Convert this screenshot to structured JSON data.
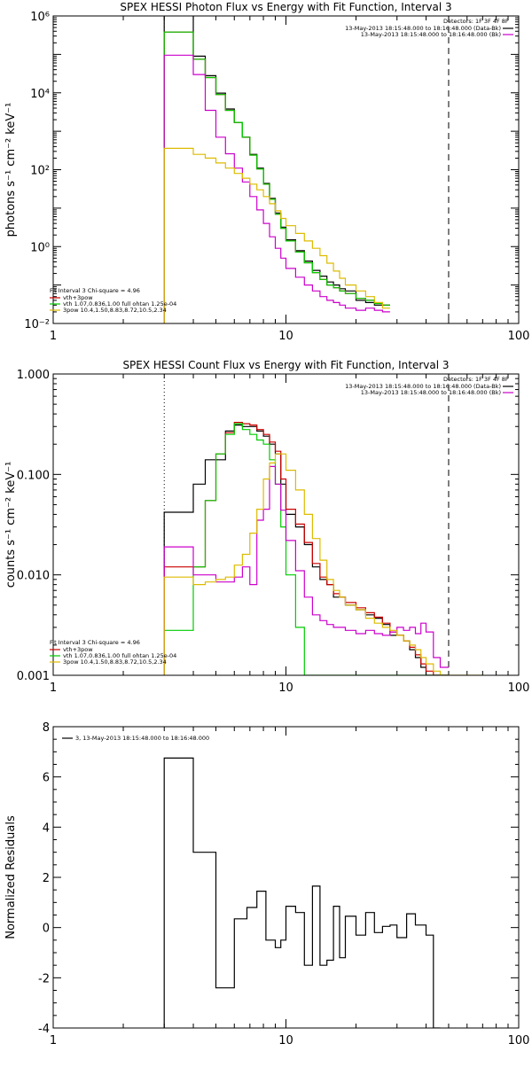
{
  "chart_data": [
    {
      "type": "line",
      "title": "SPEX HESSI Photon Flux vs Energy with Fit Function, Interval 3",
      "ylabel": "photons s⁻¹ cm⁻² keV⁻¹",
      "xscale": "log",
      "yscale": "log",
      "xlim": [
        1,
        100
      ],
      "ylim": [
        0.01,
        1000000
      ],
      "x_ticks": [
        {
          "v": 1,
          "label": "1"
        },
        {
          "v": 10,
          "label": "10"
        },
        {
          "v": 100,
          "label": "100"
        }
      ],
      "y_ticks": [
        {
          "v": 0.01,
          "label": "10⁻²"
        },
        {
          "v": 1,
          "label": "10⁰"
        },
        {
          "v": 100,
          "label": "10²"
        },
        {
          "v": 10000,
          "label": "10⁴"
        },
        {
          "v": 1000000,
          "label": "10⁶"
        }
      ],
      "vlines": [
        {
          "x": 3,
          "style": "dotted",
          "color": "#ff8c00"
        },
        {
          "x": 50,
          "style": "dashed",
          "color": "#000000"
        }
      ],
      "edges": [
        3,
        3.5,
        4,
        4.5,
        5,
        5.5,
        6,
        6.5,
        7,
        7.5,
        8,
        8.5,
        9,
        9.5,
        10,
        11,
        12,
        13,
        14,
        15,
        16,
        17,
        18,
        20,
        22,
        24,
        26,
        28,
        30,
        32,
        34,
        36,
        38,
        40,
        43,
        46,
        50,
        54,
        57
      ],
      "series": [
        {
          "name": "",
          "color": "#000000",
          "values": [
            1100000,
            1100000,
            90000,
            28000,
            9800,
            3800,
            1700,
            700,
            250,
            110,
            44,
            18,
            7.5,
            3.2,
            1.5,
            0.78,
            0.42,
            0.24,
            0.17,
            0.12,
            0.1,
            0.08,
            0.07,
            0.04,
            0.035,
            0.03,
            0.03
          ]
        },
        {
          "name": "",
          "color": "#cc0000",
          "values": [
            380000,
            380000,
            75000,
            25000,
            9000,
            3500,
            1700,
            700,
            240,
            105,
            42,
            17,
            7,
            3,
            1.4,
            0.72,
            0.38,
            0.21,
            0.14,
            0.1,
            0.085,
            0.07,
            0.06,
            0.045,
            0.04,
            0.033,
            0.03
          ]
        },
        {
          "name": "",
          "color": "#00cc00",
          "values": [
            380000,
            380000,
            75000,
            25000,
            9000,
            3500,
            1700,
            700,
            240,
            105,
            42,
            17,
            7,
            3,
            1.4,
            0.72,
            0.38,
            0.21,
            0.14,
            0.1,
            0.085,
            0.07,
            0.06,
            0.045,
            0.04,
            0.033,
            0.03
          ]
        },
        {
          "name": "",
          "color": "#cc00cc",
          "values": [
            95000,
            95000,
            30000,
            3500,
            700,
            260,
            110,
            48,
            20,
            9,
            4,
            1.8,
            0.9,
            0.5,
            0.27,
            0.16,
            0.1,
            0.07,
            0.05,
            0.04,
            0.035,
            0.03,
            0.025,
            0.022,
            0.025,
            0.022,
            0.02
          ]
        },
        {
          "name": "",
          "color": "#ddbb00",
          "values": [
            360,
            360,
            250,
            200,
            150,
            110,
            80,
            60,
            42,
            30,
            20,
            13,
            8.5,
            5.4,
            3.5,
            2.2,
            1.4,
            0.9,
            0.58,
            0.37,
            0.23,
            0.15,
            0.1,
            0.07,
            0.05,
            0.035,
            0.025
          ]
        }
      ],
      "series_steps": [
        {
          "i": 0,
          "from": 0,
          "to": 28
        },
        {
          "i": 1,
          "from": 0,
          "to": 28
        },
        {
          "i": 2,
          "from": 0,
          "to": 14
        },
        {
          "i": 3,
          "from": 0,
          "to": 28
        },
        {
          "i": 4,
          "from": 0,
          "to": 38
        }
      ],
      "legend_top": {
        "detectors": "Detectors: 1F 3F 4F 8F",
        "lines": [
          {
            "text": "13-May-2013 18:15:48.000 to 18:16:48.000 (Data-Bk)",
            "color": "#000000"
          },
          {
            "text": "13-May-2013 18:15:48.000 to 18:16:48.000 (Bk)",
            "color": "#cc00cc"
          }
        ]
      },
      "legend_fit": {
        "header": "Fit Interval 3   Chi-square = 4.96",
        "lines": [
          {
            "text": "vth+3pow",
            "color": "#cc0000"
          },
          {
            "text": "vth 1.07,0.836,1.00  full ohtan 1.25e-04",
            "color": "#00cc00"
          },
          {
            "text": "3pow 10.4,1.50,8.83,8.72,10.5,2.34",
            "color": "#ddbb00"
          }
        ]
      }
    },
    {
      "type": "line",
      "title": "SPEX HESSI Count Flux vs Energy with Fit Function, Interval 3",
      "ylabel": "counts s⁻¹ cm⁻² keV⁻¹",
      "xscale": "log",
      "yscale": "log",
      "xlim": [
        1,
        100
      ],
      "ylim": [
        0.001,
        1.0
      ],
      "x_ticks": [
        {
          "v": 1,
          "label": "1"
        },
        {
          "v": 10,
          "label": "10"
        },
        {
          "v": 100,
          "label": "100"
        }
      ],
      "y_ticks": [
        {
          "v": 0.001,
          "label": "0.001"
        },
        {
          "v": 0.01,
          "label": "0.010"
        },
        {
          "v": 0.1,
          "label": "0.100"
        },
        {
          "v": 1.0,
          "label": "1.000"
        }
      ],
      "vlines": [
        {
          "x": 3,
          "style": "dotted",
          "color": "#000000"
        },
        {
          "x": 50,
          "style": "dashed",
          "color": "#000000"
        }
      ],
      "edges": [
        3,
        3.5,
        4,
        4.5,
        5,
        5.5,
        6,
        6.5,
        7,
        7.5,
        8,
        8.5,
        9,
        9.5,
        10,
        11,
        12,
        13,
        14,
        15,
        16,
        17,
        18,
        20,
        22,
        24,
        26,
        28,
        30,
        32,
        34,
        36,
        38,
        40,
        43,
        46,
        50,
        54,
        57,
        60,
        63,
        66,
        70
      ],
      "series": [
        {
          "name": "",
          "color": "#000000",
          "values": [
            0.042,
            0.042,
            0.08,
            0.14,
            0.14,
            0.27,
            0.31,
            0.3,
            0.3,
            0.27,
            0.24,
            0.2,
            0.16,
            0.08,
            0.04,
            0.03,
            0.02,
            0.012,
            0.009,
            0.008,
            0.006,
            0.006,
            0.005,
            0.0045,
            0.004,
            0.0037,
            0.0032,
            0.0025,
            0.0025,
            0.0022,
            0.0018,
            0.0015,
            0.0012,
            0.001,
            0.001,
            0.001
          ]
        },
        {
          "name": "",
          "color": "#cc0000",
          "values": [
            0.012,
            0.012,
            0.012,
            0.055,
            0.16,
            0.26,
            0.33,
            0.32,
            0.31,
            0.28,
            0.25,
            0.21,
            0.17,
            0.09,
            0.045,
            0.032,
            0.021,
            0.013,
            0.0095,
            0.008,
            0.0065,
            0.006,
            0.0053,
            0.0047,
            0.0042,
            0.0038,
            0.0033,
            0.0027,
            0.0025,
            0.0022,
            0.0019,
            0.0016,
            0.0013,
            0.0011,
            0.001,
            0.001
          ]
        },
        {
          "name": "",
          "color": "#00cc00",
          "values": [
            0.0028,
            0.0028,
            0.012,
            0.055,
            0.16,
            0.25,
            0.32,
            0.28,
            0.25,
            0.22,
            0.2,
            0.14,
            0.08,
            0.03,
            0.01,
            0.003,
            0.001,
            0.001,
            0.001,
            0.001,
            0.001,
            0.001,
            0.001,
            0.001,
            0.001,
            0.001,
            0.001,
            0.001,
            0.001,
            0.001,
            0.001,
            0.001,
            0.001,
            0.001,
            0.001,
            0.001
          ]
        },
        {
          "name": "",
          "color": "#cc00cc",
          "values": [
            0.019,
            0.019,
            0.01,
            0.01,
            0.0085,
            0.0085,
            0.0095,
            0.012,
            0.008,
            0.035,
            0.045,
            0.12,
            0.08,
            0.044,
            0.022,
            0.011,
            0.006,
            0.004,
            0.0035,
            0.0032,
            0.003,
            0.003,
            0.0028,
            0.0026,
            0.0028,
            0.0026,
            0.0025,
            0.0027,
            0.003,
            0.0028,
            0.003,
            0.0026,
            0.0033,
            0.0027,
            0.0015,
            0.0012
          ]
        },
        {
          "name": "",
          "color": "#ddbb00",
          "values": [
            0.0095,
            0.0095,
            0.008,
            0.0085,
            0.009,
            0.0095,
            0.0125,
            0.016,
            0.026,
            0.045,
            0.09,
            0.13,
            0.16,
            0.16,
            0.11,
            0.07,
            0.04,
            0.023,
            0.014,
            0.009,
            0.007,
            0.006,
            0.005,
            0.0045,
            0.0037,
            0.0033,
            0.003,
            0.0028,
            0.0025,
            0.0022,
            0.002,
            0.0018,
            0.0015,
            0.0013,
            0.0011,
            0.001,
            0.001,
            0.001,
            0.001,
            0.001,
            0.001,
            0.001
          ]
        }
      ],
      "legend_top": {
        "detectors": "Detectors: 1F 3F 4F 8F",
        "lines": [
          {
            "text": "13-May-2013 18:15:48.000 to 18:16:48.000 (Data-Bk)",
            "color": "#000000"
          },
          {
            "text": "13-May-2013 18:15:48.000 to 18:16:48.000 (Bk)",
            "color": "#cc00cc"
          }
        ]
      },
      "legend_fit": {
        "header": "Fit Interval 3   Chi-square = 4.96",
        "lines": [
          {
            "text": "vth+3pow",
            "color": "#cc0000"
          },
          {
            "text": "vth 1.07,0.836,1.00  full ohtan 1.25e-04",
            "color": "#00cc00"
          },
          {
            "text": "3pow 10.4,1.50,8.83,8.72,10.5,2.34",
            "color": "#ddbb00"
          }
        ]
      }
    },
    {
      "type": "line",
      "title": "",
      "ylabel": "Normalized Residuals",
      "xscale": "log",
      "yscale": "linear",
      "xlim": [
        1,
        100
      ],
      "ylim": [
        -4,
        8
      ],
      "x_ticks": [
        {
          "v": 1,
          "label": "1"
        },
        {
          "v": 10,
          "label": "10"
        },
        {
          "v": 100,
          "label": "100"
        }
      ],
      "y_ticks": [
        {
          "v": -4,
          "label": "-4"
        },
        {
          "v": -2,
          "label": "-2"
        },
        {
          "v": 0,
          "label": "0"
        },
        {
          "v": 2,
          "label": "2"
        },
        {
          "v": 4,
          "label": "4"
        },
        {
          "v": 6,
          "label": "6"
        },
        {
          "v": 8,
          "label": "8"
        }
      ],
      "edges": [
        3,
        4,
        5,
        6,
        6.8,
        7.5,
        8.2,
        9,
        9.5,
        10,
        11,
        12,
        13,
        14,
        15,
        16,
        17,
        18,
        20,
        22,
        24,
        26,
        28,
        30,
        33,
        36,
        40,
        43,
        46,
        50
      ],
      "series": [
        {
          "name": "",
          "color": "#000000",
          "values": [
            6.75,
            3.0,
            -2.4,
            0.35,
            0.8,
            1.45,
            -0.5,
            -0.8,
            -0.5,
            0.85,
            0.6,
            -1.5,
            1.65,
            -1.5,
            -1.3,
            0.85,
            -1.2,
            0.45,
            -0.3,
            0.6,
            -0.2,
            0.05,
            0.1,
            -0.4,
            0.55,
            0.1,
            -0.3,
            -4
          ]
        }
      ],
      "legend": {
        "text": "3, 13-May-2013 18:15:48.000 to 18:16:48.000",
        "color": "#000000"
      }
    }
  ]
}
